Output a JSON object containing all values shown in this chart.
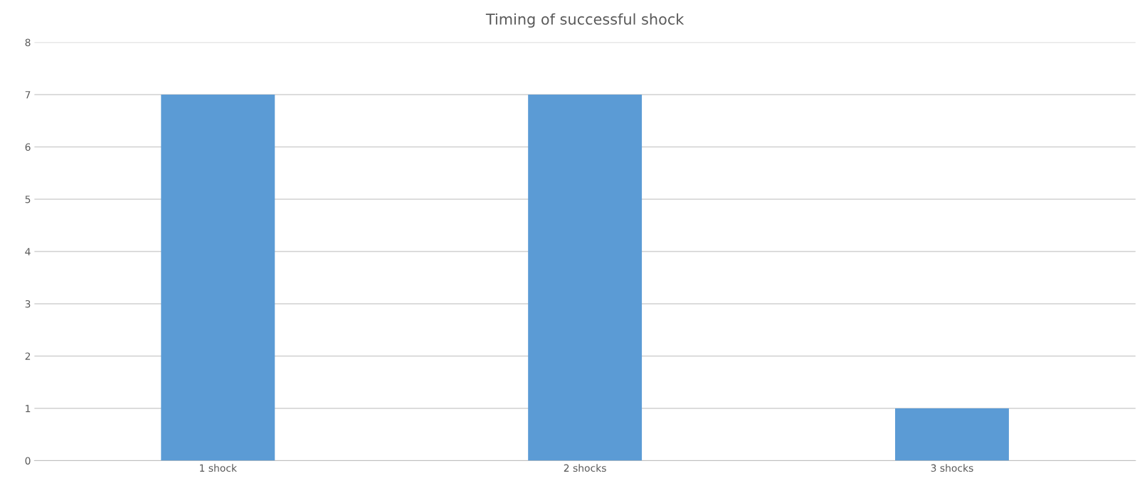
{
  "chart_data": {
    "type": "bar",
    "title": "Timing of successful shock",
    "categories": [
      "1 shock",
      "2 shocks",
      "3 shocks"
    ],
    "values": [
      7,
      7,
      1
    ],
    "color": "#5b9bd5",
    "ylim": [
      0,
      8
    ],
    "yticks": [
      0,
      1,
      2,
      3,
      4,
      5,
      6,
      7,
      8
    ],
    "grid": "y"
  }
}
